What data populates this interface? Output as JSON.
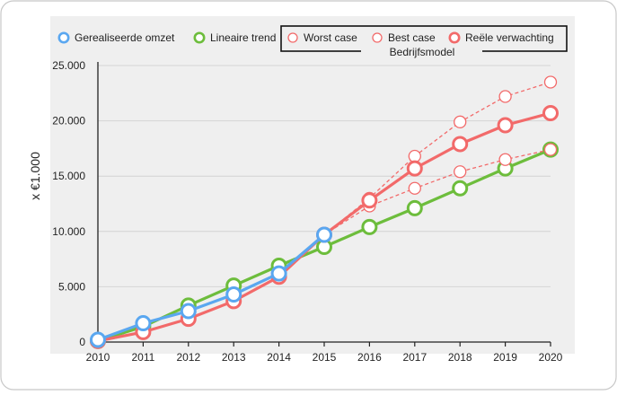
{
  "chart_data": {
    "type": "line",
    "x": [
      2010,
      2011,
      2012,
      2013,
      2014,
      2015,
      2016,
      2017,
      2018,
      2019,
      2020
    ],
    "ylabel": "x €1.000",
    "ylim": [
      0,
      25000
    ],
    "yticks": [
      0,
      5000,
      10000,
      15000,
      20000,
      25000
    ],
    "ytick_labels": [
      "0",
      "5.000",
      "10.000",
      "15.000",
      "20.000",
      "25.000"
    ],
    "xtick_labels": [
      "2010",
      "2011",
      "2012",
      "2013",
      "2014",
      "2015",
      "2016",
      "2017",
      "2018",
      "2019",
      "2020"
    ],
    "grid": "horizontal",
    "legend": {
      "placement": "top",
      "group_title": "Bedrijfsmodel"
    },
    "series": [
      {
        "name": "Lineaire trend",
        "color": "#6dbd3c",
        "style": "solid-bold",
        "x": [
          2010,
          2011,
          2012,
          2013,
          2014,
          2015,
          2016,
          2017,
          2018,
          2019,
          2020
        ],
        "values": [
          100,
          1400,
          3300,
          5100,
          6900,
          8600,
          10400,
          12100,
          13900,
          15700,
          17400
        ]
      },
      {
        "name": "Worst case",
        "color": "#f26a6a",
        "style": "dashed-thin",
        "x": [
          2015,
          2016,
          2017,
          2018,
          2019,
          2020
        ],
        "values": [
          9700,
          12300,
          13900,
          15400,
          16500,
          17400
        ]
      },
      {
        "name": "Best case",
        "color": "#f26a6a",
        "style": "dashed-thin",
        "x": [
          2015,
          2016,
          2017,
          2018,
          2019,
          2020
        ],
        "values": [
          9700,
          13000,
          16800,
          19900,
          22200,
          23500
        ]
      },
      {
        "name": "Reële verwachting",
        "color": "#f26a6a",
        "style": "solid-bold",
        "x": [
          2010,
          2011,
          2012,
          2013,
          2014,
          2015,
          2016,
          2017,
          2018,
          2019,
          2020
        ],
        "values": [
          100,
          900,
          2100,
          3700,
          5900,
          9700,
          12800,
          15700,
          17900,
          19600,
          20700
        ]
      },
      {
        "name": "Gerealiseerde omzet",
        "color": "#5aa7f0",
        "style": "solid-bold",
        "x": [
          2010,
          2011,
          2012,
          2013,
          2014,
          2015
        ],
        "values": [
          200,
          1700,
          2800,
          4300,
          6200,
          9700
        ]
      }
    ],
    "legend_order": [
      "Gerealiseerde omzet",
      "Lineaire trend",
      "Worst case",
      "Best case",
      "Reële verwachting"
    ]
  }
}
